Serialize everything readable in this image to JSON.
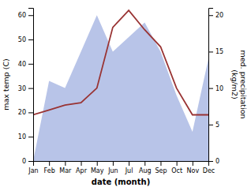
{
  "chart_data": {
    "type": "line",
    "x_label": "date (month)",
    "y_label": "max temp (C)",
    "y2_label": "med. precipitation\n(kg/m2)",
    "categories": [
      "Jan",
      "Feb",
      "Mar",
      "Apr",
      "May",
      "Jun",
      "Jul",
      "Aug",
      "Sep",
      "Oct",
      "Nov",
      "Dec"
    ],
    "series": [
      {
        "type": "area",
        "axis": "y2",
        "color": "#b8c4e8",
        "values": [
          0,
          11,
          10,
          15,
          20,
          15,
          17,
          19,
          15,
          9,
          4,
          14
        ]
      },
      {
        "type": "line",
        "color": "#993333",
        "values": [
          19,
          21,
          23,
          24,
          30,
          55,
          62,
          54,
          47,
          30,
          19,
          19
        ]
      }
    ],
    "ylim": [
      0,
      63
    ],
    "yticks": [
      0,
      10,
      20,
      30,
      40,
      50,
      60
    ],
    "y2lim": [
      0,
      21
    ],
    "y2ticks": [
      0,
      5,
      10,
      15,
      20
    ]
  }
}
